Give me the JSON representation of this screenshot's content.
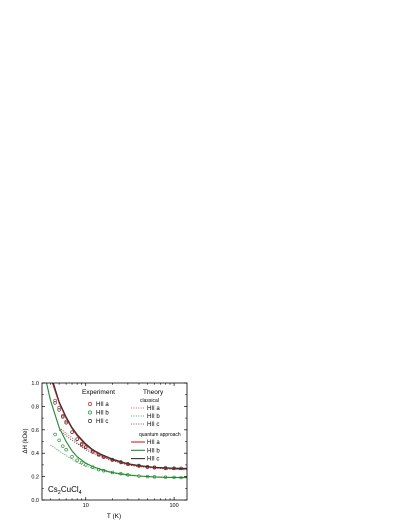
{
  "chart_data": {
    "type": "scatter",
    "xlabel": "T (K)",
    "ylabel": "ΔH (kOe)",
    "xscale": "log",
    "xlim": [
      3.2,
      140
    ],
    "ylim": [
      0.0,
      1.0
    ],
    "x_ticks": [
      10,
      100
    ],
    "x_tick_labels": [
      "10",
      "100"
    ],
    "y_ticks": [
      0.0,
      0.2,
      0.4,
      0.6,
      0.8,
      1.0
    ],
    "y_tick_labels": [
      "0.0",
      "0.2",
      "0.4",
      "0.6",
      "0.8",
      "1.0"
    ],
    "grid": false,
    "annotation": {
      "base": "Cs",
      "sub1": "2",
      "mid": "CuCl",
      "sub2": "4"
    },
    "legend": {
      "experiment_title": "Experiment",
      "theory_title": "Theory",
      "classical_title": "classical",
      "quantum_title": "quantum approach"
    },
    "colors": {
      "a": "#cc2222",
      "b": "#22882e",
      "c": "#333333"
    },
    "series": [
      {
        "group": "Experiment",
        "name": "HII a",
        "marker": "circle",
        "color": "#cc2222",
        "x": [
          4.5,
          5,
          5.5,
          6,
          7,
          8,
          9,
          10,
          12,
          14,
          16,
          20,
          25,
          30,
          40,
          50,
          60,
          80,
          100,
          120
        ],
        "y": [
          0.85,
          0.79,
          0.72,
          0.67,
          0.58,
          0.52,
          0.47,
          0.45,
          0.41,
          0.385,
          0.365,
          0.34,
          0.32,
          0.305,
          0.29,
          0.28,
          0.275,
          0.27,
          0.27,
          0.27
        ]
      },
      {
        "group": "Experiment",
        "name": "HII b",
        "marker": "circle",
        "color": "#22882e",
        "x": [
          4.5,
          5,
          5.5,
          6,
          7,
          8,
          9,
          10,
          12,
          14,
          16,
          20,
          25,
          30,
          40,
          50,
          60,
          80,
          100,
          120
        ],
        "y": [
          0.56,
          0.51,
          0.46,
          0.43,
          0.37,
          0.34,
          0.32,
          0.3,
          0.28,
          0.26,
          0.25,
          0.235,
          0.225,
          0.215,
          0.205,
          0.2,
          0.198,
          0.195,
          0.193,
          0.192
        ]
      },
      {
        "group": "Experiment",
        "name": "HII c",
        "marker": "circle",
        "color": "#333333",
        "x": [
          4.5,
          5,
          5.5,
          6,
          7,
          8,
          9,
          10,
          12,
          14,
          16,
          20,
          25,
          30,
          40,
          50,
          60,
          80,
          100,
          120
        ],
        "y": [
          0.83,
          0.77,
          0.71,
          0.66,
          0.58,
          0.52,
          0.48,
          0.455,
          0.42,
          0.39,
          0.37,
          0.345,
          0.325,
          0.31,
          0.295,
          0.285,
          0.28,
          0.275,
          0.272,
          0.27
        ]
      },
      {
        "group": "Theory classical",
        "name": "HII a",
        "line": "dotted",
        "color": "#cc2222",
        "x": [
          5,
          6,
          7,
          8,
          10,
          12,
          15,
          20,
          30,
          40,
          60,
          80,
          100,
          120,
          140
        ],
        "y": [
          0.62,
          0.57,
          0.53,
          0.49,
          0.44,
          0.41,
          0.375,
          0.34,
          0.305,
          0.29,
          0.275,
          0.27,
          0.265,
          0.262,
          0.26
        ]
      },
      {
        "group": "Theory classical",
        "name": "HII b",
        "line": "dotted",
        "color": "#22882e",
        "x": [
          4,
          5,
          6,
          7,
          8,
          10,
          12,
          15,
          20,
          30,
          40,
          60,
          80,
          100,
          120,
          140
        ],
        "y": [
          0.47,
          0.42,
          0.38,
          0.35,
          0.32,
          0.29,
          0.27,
          0.25,
          0.23,
          0.21,
          0.205,
          0.195,
          0.192,
          0.19,
          0.19,
          0.19
        ]
      },
      {
        "group": "Theory classical",
        "name": "HII c",
        "line": "dotted",
        "color": "#333333",
        "x": [
          5,
          6,
          7,
          8,
          10,
          12,
          15,
          20,
          30,
          40,
          60,
          80,
          100,
          120,
          140
        ],
        "y": [
          0.6,
          0.55,
          0.51,
          0.48,
          0.43,
          0.4,
          0.37,
          0.335,
          0.3,
          0.285,
          0.272,
          0.265,
          0.262,
          0.26,
          0.258
        ]
      },
      {
        "group": "Theory quantum approach",
        "name": "HII a",
        "line": "solid",
        "color": "#cc2222",
        "x": [
          4.2,
          5,
          6,
          7,
          8,
          10,
          12,
          15,
          20,
          30,
          40,
          60,
          80,
          100,
          120,
          140
        ],
        "y": [
          1.0,
          0.83,
          0.7,
          0.61,
          0.55,
          0.47,
          0.425,
          0.385,
          0.345,
          0.305,
          0.29,
          0.277,
          0.272,
          0.27,
          0.27,
          0.27
        ]
      },
      {
        "group": "Theory quantum approach",
        "name": "HII b",
        "line": "solid",
        "color": "#22882e",
        "x": [
          3.6,
          4,
          5,
          6,
          7,
          8,
          10,
          12,
          15,
          20,
          30,
          40,
          60,
          80,
          100,
          120,
          140
        ],
        "y": [
          1.0,
          0.85,
          0.62,
          0.5,
          0.42,
          0.37,
          0.315,
          0.285,
          0.26,
          0.235,
          0.215,
          0.205,
          0.197,
          0.194,
          0.193,
          0.192,
          0.192
        ]
      },
      {
        "group": "Theory quantum approach",
        "name": "HII c",
        "line": "solid",
        "color": "#333333",
        "x": [
          4.3,
          5,
          6,
          7,
          8,
          10,
          12,
          15,
          20,
          30,
          40,
          60,
          80,
          100,
          120,
          140
        ],
        "y": [
          1.0,
          0.84,
          0.71,
          0.62,
          0.56,
          0.48,
          0.43,
          0.39,
          0.35,
          0.31,
          0.295,
          0.28,
          0.275,
          0.272,
          0.27,
          0.27
        ]
      }
    ]
  }
}
